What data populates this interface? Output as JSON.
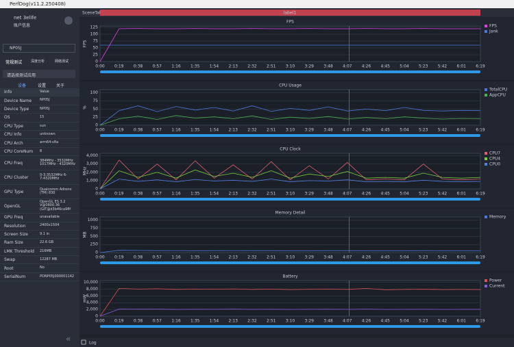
{
  "window_title": "PerfDog(v11.2.250408)",
  "sidebar": {
    "user": "net 3elife",
    "account": "账户信息",
    "device": "NP05J",
    "mode_tabs": [
      "常规测试",
      "深度分析",
      "网络测试"
    ],
    "app_select": "请选择测试应用",
    "info_tabs": [
      "设备",
      "设置",
      "关于"
    ],
    "info_header": [
      "Info",
      "Value"
    ],
    "info_rows": [
      [
        "Device Name",
        "NP05J"
      ],
      [
        "Device Type",
        "NP05J"
      ],
      [
        "OS",
        "15"
      ],
      [
        "CPU Type",
        "sun"
      ],
      [
        "CPU Info",
        "unknown"
      ],
      [
        "CPU Arch",
        "arm64-v8a"
      ],
      [
        "CPU CoreNum",
        "8"
      ],
      [
        "CPU Freq",
        "384MHz - 3532MHz 1017MHz - 4320MHz"
      ],
      [
        "CPU Cluster",
        "0-3:3532MHz 6-7:4320MHz"
      ],
      [
        "GPU Type",
        "Qualcomm Adreno (TM) 830"
      ],
      [
        "OpenGL",
        "OpenGL ES 3.2 V@0800.36 (GIT@d3b46ca98f"
      ],
      [
        "GPU Freq",
        "unavailable"
      ],
      [
        "Resolution",
        "2400x1504"
      ],
      [
        "Screen Size",
        "9.1 in"
      ],
      [
        "Ram Size",
        "22.6 GB"
      ],
      [
        "LMK Threshold",
        "216MB"
      ],
      [
        "Swap",
        "12287 MB"
      ],
      [
        "Root",
        "No"
      ],
      [
        "SerialNum",
        "PDNP05J000001142"
      ]
    ],
    "log": "Log"
  },
  "toolbar": {
    "scene_tab": "SceneTab",
    "label": "label1"
  },
  "chart_data": [
    {
      "type": "line",
      "title": "FPS",
      "ylabel": "FPS",
      "ylim": [
        0,
        130
      ],
      "yticks": [
        0,
        25,
        50,
        75,
        100,
        125
      ],
      "categories": [
        "0:00",
        "0:19",
        "0:38",
        "0:57",
        "1:16",
        "1:35",
        "1:54",
        "2:13",
        "2:32",
        "2:51",
        "3:10",
        "3:29",
        "3:48",
        "4:07",
        "4:26",
        "4:45",
        "5:04",
        "5:23",
        "5:42",
        "6:01",
        "6:19"
      ],
      "series": [
        {
          "name": "FPS",
          "color": "#e040e0",
          "values": [
            0,
            120,
            121,
            120,
            120,
            121,
            120,
            120,
            121,
            120,
            120,
            121,
            120,
            120,
            121,
            120,
            120,
            121,
            120,
            120,
            120
          ]
        },
        {
          "name": "Jank",
          "color": "#4a7bd8",
          "values": [
            60,
            60,
            60,
            60,
            60,
            60,
            60,
            60,
            60,
            60,
            60,
            60,
            60,
            60,
            60,
            60,
            60,
            60,
            60,
            60,
            60
          ]
        }
      ]
    },
    {
      "type": "line",
      "title": "CPU Usage",
      "ylabel": "%",
      "ylim": [
        0,
        110
      ],
      "yticks": [
        0,
        25,
        50,
        75,
        100
      ],
      "categories": [
        "0:00",
        "0:19",
        "0:38",
        "0:57",
        "1:16",
        "1:35",
        "1:54",
        "2:13",
        "2:32",
        "2:51",
        "3:10",
        "3:29",
        "3:48",
        "4:07",
        "4:26",
        "4:45",
        "5:04",
        "5:23",
        "5:42",
        "6:01",
        "6:19"
      ],
      "series": [
        {
          "name": "TotalCPU",
          "color": "#4a7bd8",
          "values": [
            0,
            45,
            60,
            42,
            58,
            47,
            55,
            44,
            60,
            43,
            52,
            46,
            57,
            44,
            50,
            45,
            55,
            46,
            44,
            46,
            45
          ]
        },
        {
          "name": "AppCPU",
          "color": "#4caf50",
          "values": [
            0,
            20,
            28,
            18,
            30,
            22,
            26,
            20,
            29,
            18,
            25,
            21,
            27,
            19,
            24,
            20,
            26,
            22,
            19,
            21,
            20
          ]
        }
      ]
    },
    {
      "type": "line",
      "title": "CPU Clock",
      "ylabel": "MHz",
      "ylim": [
        0,
        4300
      ],
      "yticks": [
        0,
        {
          "value": 1000,
          "label": "1,000"
        },
        {
          "value": 2000,
          "label": "2,000"
        },
        {
          "value": 3000,
          "label": "3,000"
        },
        {
          "value": 4000,
          "label": "4,000"
        }
      ],
      "categories": [
        "0:00",
        "0:19",
        "0:38",
        "0:57",
        "1:16",
        "1:35",
        "1:54",
        "2:13",
        "2:32",
        "2:51",
        "3:10",
        "3:29",
        "3:48",
        "4:07",
        "4:26",
        "4:45",
        "5:04",
        "5:23",
        "5:42",
        "6:01",
        "6:19"
      ],
      "series": [
        {
          "name": "CPU7",
          "color": "#e06070",
          "values": [
            0,
            3500,
            1200,
            3000,
            1100,
            3400,
            1300,
            2900,
            1200,
            3300,
            1100,
            2800,
            1200,
            3200,
            1100,
            1200,
            1100,
            3000,
            1200,
            1100,
            1200
          ]
        },
        {
          "name": "CPU4",
          "color": "#7ccf3a",
          "values": [
            0,
            2200,
            1400,
            2000,
            1300,
            2300,
            1500,
            1900,
            1400,
            2200,
            1300,
            1800,
            1500,
            2100,
            1300,
            1400,
            1300,
            1900,
            1400,
            1300,
            1400
          ]
        },
        {
          "name": "CPU0",
          "color": "#5080e0",
          "values": [
            0,
            1200,
            900,
            1100,
            850,
            1150,
            950,
            1050,
            900,
            1200,
            850,
            1000,
            950,
            1100,
            850,
            900,
            850,
            1050,
            900,
            850,
            900
          ]
        }
      ]
    },
    {
      "type": "line",
      "title": "Memory Detail",
      "ylabel": "MB",
      "ylim": [
        0,
        1100
      ],
      "yticks": [
        0,
        250,
        500,
        750,
        1000
      ],
      "categories": [
        "0:00",
        "0:19",
        "0:38",
        "0:57",
        "1:16",
        "1:35",
        "1:54",
        "2:13",
        "2:32",
        "2:51",
        "3:10",
        "3:29",
        "3:48",
        "4:07",
        "4:26",
        "4:45",
        "5:04",
        "5:23",
        "5:42",
        "6:01",
        "6:19"
      ],
      "series": [
        {
          "name": "Memory",
          "color": "#4a7bd8",
          "values": [
            0,
            70,
            65,
            60,
            62,
            58,
            60,
            61,
            59,
            60,
            58,
            57,
            59,
            60,
            58,
            57,
            58,
            59,
            57,
            58,
            58
          ]
        }
      ]
    },
    {
      "type": "line",
      "title": "Battery",
      "ylabel": "mW",
      "ylim": [
        0,
        10500
      ],
      "yticks": [
        0,
        {
          "value": 2000,
          "label": "2,000"
        },
        {
          "value": 4000,
          "label": "4,000"
        },
        {
          "value": 6000,
          "label": "6,000"
        },
        {
          "value": 8000,
          "label": "8,000"
        },
        {
          "value": 10000,
          "label": "10,000"
        }
      ],
      "categories": [
        "0:00",
        "0:19",
        "0:38",
        "0:57",
        "1:16",
        "1:35",
        "1:54",
        "2:13",
        "2:32",
        "2:51",
        "3:10",
        "3:29",
        "3:48",
        "4:07",
        "4:26",
        "4:45",
        "5:04",
        "5:23",
        "5:42",
        "6:01",
        "6:19"
      ],
      "series": [
        {
          "name": "Power",
          "color": "#e05050",
          "values": [
            0,
            8200,
            8000,
            8100,
            7900,
            8000,
            7950,
            8050,
            7900,
            8000,
            7850,
            7950,
            8000,
            7900,
            8200,
            7800,
            7900,
            7950,
            7850,
            7900,
            7850
          ]
        },
        {
          "name": "Current",
          "color": "#8a5cd8",
          "values": [
            0,
            2100,
            2050,
            2080,
            2000,
            2060,
            2040,
            2070,
            2010,
            2050,
            2000,
            2030,
            2060,
            2020,
            2100,
            1990,
            2020,
            2040,
            2000,
            2020,
            2010
          ]
        }
      ]
    }
  ]
}
